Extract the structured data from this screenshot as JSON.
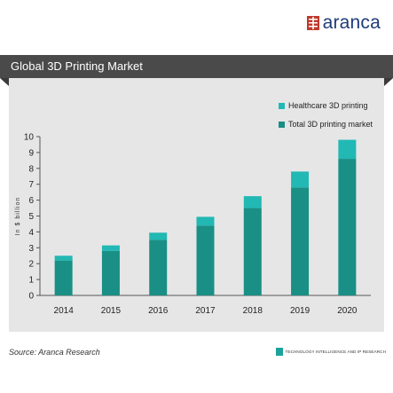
{
  "brand": {
    "name": "aranca"
  },
  "header": {
    "title": "Global 3D Printing Market"
  },
  "footer": {
    "source": "Source:  Aranca Research",
    "tagline": "TECHNOLOGY INTELLIGENCE AND IP RESEARCH"
  },
  "colors": {
    "healthcare": "#22b8b4",
    "total": "#1a8f85",
    "brand_red": "#c0392b",
    "brand_blue": "#1f3b78",
    "panel": "#e6e6e6"
  },
  "chart_data": {
    "type": "bar",
    "stacked": true,
    "title": "",
    "ylabel": "In $ billion",
    "xlabel": "",
    "categories": [
      "2014",
      "2015",
      "2016",
      "2017",
      "2018",
      "2019",
      "2020"
    ],
    "series": [
      {
        "name": "Total 3D printing market",
        "values": [
          2.2,
          2.8,
          3.5,
          4.4,
          5.5,
          6.8,
          8.6
        ]
      },
      {
        "name": "Healthcare 3D printing",
        "values": [
          0.3,
          0.35,
          0.45,
          0.55,
          0.75,
          1.0,
          1.2
        ]
      }
    ],
    "ylim": [
      0,
      10
    ],
    "yticks": [
      "0",
      "1",
      "2",
      "3",
      "4",
      "5",
      "6",
      "7",
      "8",
      "9",
      "10"
    ],
    "legend_position": "top-right",
    "grid": false
  }
}
